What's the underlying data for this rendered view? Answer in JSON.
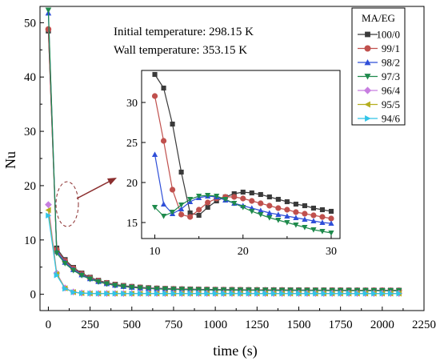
{
  "chart_data": {
    "type": "line",
    "xlabel": "time (s)",
    "ylabel": "Nu",
    "xlim": [
      -50,
      2250
    ],
    "ylim": [
      -3,
      53
    ],
    "xticks": [
      0,
      250,
      500,
      750,
      1000,
      1250,
      1500,
      1750,
      2000,
      2250
    ],
    "yticks": [
      0,
      10,
      20,
      30,
      40,
      50
    ],
    "annotations": [
      "Initial temperature: 298.15 K",
      "Wall temperature: 353.15 K"
    ],
    "legend": {
      "title": "MA/EG",
      "placement": "top-right"
    },
    "series": [
      {
        "name": "100/0",
        "color": "#3a3a3a",
        "marker": "square",
        "group": "upper",
        "nu0": 48.5
      },
      {
        "name": "99/1",
        "color": "#c0504d",
        "marker": "circle",
        "group": "upper",
        "nu0": 48.8
      },
      {
        "name": "98/2",
        "color": "#2f4fd8",
        "marker": "triangle-up",
        "group": "upper",
        "nu0": 51.8
      },
      {
        "name": "97/3",
        "color": "#1f8a4c",
        "marker": "triangle-down",
        "group": "upper",
        "nu0": 52.3
      },
      {
        "name": "96/4",
        "color": "#c77ee0",
        "marker": "diamond",
        "group": "lower",
        "nu0": 16.5
      },
      {
        "name": "95/5",
        "color": "#b5ae1f",
        "marker": "triangle-left",
        "group": "lower",
        "nu0": 15.5
      },
      {
        "name": "94/6",
        "color": "#31c4e8",
        "marker": "triangle-right",
        "group": "lower",
        "nu0": 14.5
      }
    ],
    "inset": {
      "xlim": [
        8.5,
        31
      ],
      "ylim": [
        13,
        34
      ],
      "xticks": [
        10,
        20,
        30
      ],
      "yticks": [
        15,
        20,
        25,
        30
      ],
      "x": [
        10,
        11,
        12,
        13,
        14,
        15,
        16,
        17,
        18,
        19,
        20,
        21,
        22,
        23,
        24,
        25,
        26,
        27,
        28,
        29,
        30
      ],
      "series": [
        {
          "name": "100/0",
          "values": [
            33.5,
            31.8,
            27.3,
            21.3,
            16.2,
            15.9,
            16.9,
            17.7,
            18.2,
            18.6,
            18.8,
            18.7,
            18.5,
            18.2,
            17.9,
            17.6,
            17.3,
            17.1,
            16.8,
            16.6,
            16.4
          ]
        },
        {
          "name": "99/1",
          "values": [
            30.8,
            25.2,
            19.1,
            16.0,
            15.7,
            16.6,
            17.5,
            18.0,
            18.2,
            18.2,
            18.0,
            17.7,
            17.4,
            17.1,
            16.8,
            16.6,
            16.3,
            16.1,
            15.9,
            15.7,
            15.5
          ]
        },
        {
          "name": "98/2",
          "values": [
            23.5,
            17.3,
            16.1,
            16.7,
            17.6,
            18.1,
            18.3,
            18.2,
            17.8,
            17.4,
            17.1,
            16.8,
            16.5,
            16.2,
            16.0,
            15.8,
            15.6,
            15.4,
            15.2,
            15.0,
            14.9
          ]
        },
        {
          "name": "97/3",
          "values": [
            16.9,
            15.8,
            16.3,
            17.2,
            17.9,
            18.3,
            18.4,
            18.3,
            17.9,
            17.4,
            16.9,
            16.4,
            16.0,
            15.6,
            15.3,
            15.0,
            14.7,
            14.4,
            14.1,
            13.9,
            13.7
          ]
        }
      ]
    }
  }
}
